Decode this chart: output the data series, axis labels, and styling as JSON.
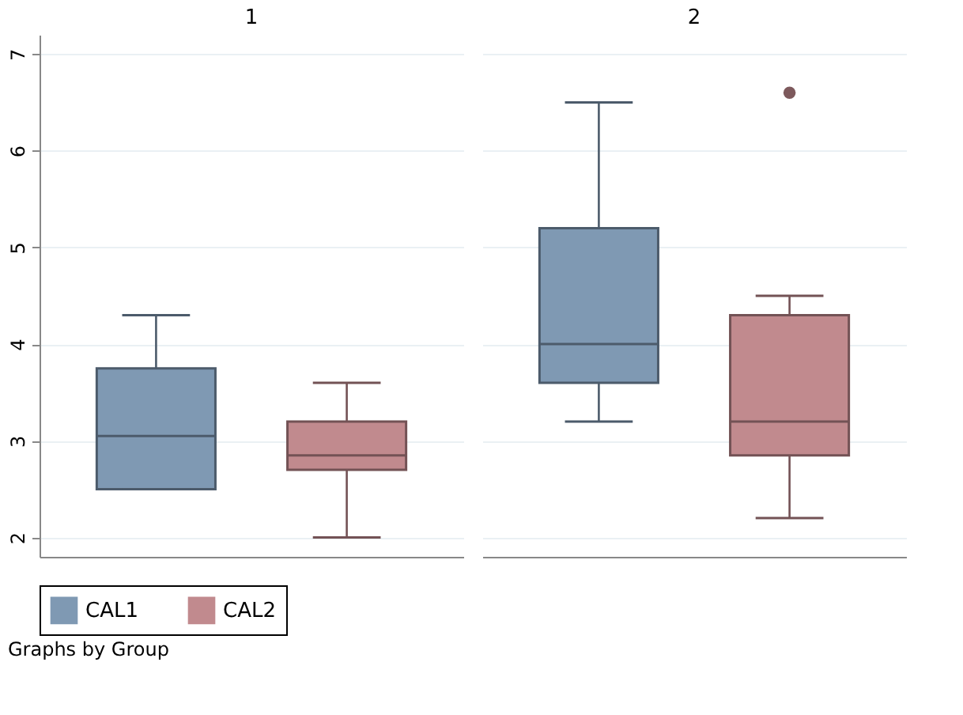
{
  "chart_data": {
    "type": "box",
    "categories": [
      "1",
      "2"
    ],
    "ylim": [
      1.8,
      7.2
    ],
    "yticks": [
      2,
      3,
      4,
      5,
      6,
      7
    ],
    "grid": "y",
    "legend": "bottom",
    "annotations": [
      "Graphs by Group"
    ],
    "series": [
      {
        "name": "CAL1",
        "color": "#7f99b3",
        "boxes": [
          {
            "low": 2.5,
            "q1": 2.5,
            "median": 3.05,
            "q3": 3.75,
            "high": 4.3
          },
          {
            "low": 3.2,
            "q1": 3.6,
            "median": 4.0,
            "q3": 5.2,
            "high": 6.5
          }
        ]
      },
      {
        "name": "CAL2",
        "color": "#c18a8e",
        "boxes": [
          {
            "low": 2.0,
            "q1": 2.7,
            "median": 2.85,
            "q3": 3.2,
            "high": 3.6
          },
          {
            "low": 2.2,
            "q1": 2.85,
            "median": 3.2,
            "q3": 4.3,
            "high": 4.5,
            "outliers": [
              6.6
            ]
          }
        ]
      }
    ]
  }
}
